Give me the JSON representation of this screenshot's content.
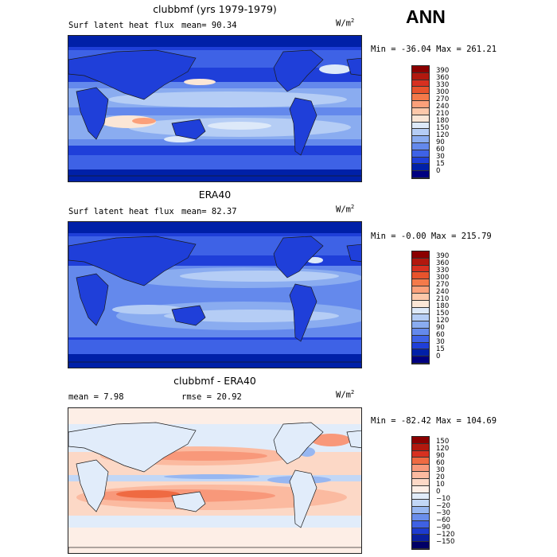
{
  "page": {
    "season": "ANN"
  },
  "chart_data": [
    {
      "type": "heatmap",
      "title": "clubbmf (yrs 1979-1979)",
      "field_label": "Surf latent heat flux",
      "stat_text": "mean=  90.34",
      "units": "W/m",
      "units_sup": "2",
      "min_max": "Min = -36.04  Max = 261.21",
      "colorbar": {
        "levels": [
          "390",
          "360",
          "330",
          "300",
          "270",
          "240",
          "210",
          "180",
          "150",
          "120",
          "90",
          "60",
          "30",
          "15",
          "0"
        ],
        "colors": [
          "#8b0000",
          "#b2180e",
          "#d73020",
          "#e8532c",
          "#f47a4a",
          "#fba07a",
          "#fdc8aa",
          "#fbe6d6",
          "#dde9f9",
          "#b5cdf5",
          "#8aacf0",
          "#6489ec",
          "#3e62e6",
          "#1f3fd9",
          "#0020a8",
          "#000080"
        ]
      }
    },
    {
      "type": "heatmap",
      "title": "ERA40",
      "field_label": "Surf latent heat flux",
      "stat_text": "mean=  82.37",
      "units": "W/m",
      "units_sup": "2",
      "min_max": "Min =  -0.00  Max = 215.79",
      "colorbar": {
        "levels": [
          "390",
          "360",
          "330",
          "300",
          "270",
          "240",
          "210",
          "180",
          "150",
          "120",
          "90",
          "60",
          "30",
          "15",
          "0"
        ],
        "colors": [
          "#8b0000",
          "#b2180e",
          "#d73020",
          "#e8532c",
          "#f47a4a",
          "#fba07a",
          "#fdc8aa",
          "#fbe6d6",
          "#dde9f9",
          "#b5cdf5",
          "#8aacf0",
          "#6489ec",
          "#3e62e6",
          "#1f3fd9",
          "#0020a8",
          "#000080"
        ]
      }
    },
    {
      "type": "heatmap",
      "title": "clubbmf - ERA40",
      "stat_text_left": "mean =   7.98",
      "stat_text_right": "rmse =  20.92",
      "units": "W/m",
      "units_sup": "2",
      "min_max": "Min = -82.42  Max = 104.69",
      "colorbar": {
        "levels": [
          "150",
          "120",
          "90",
          "60",
          "30",
          "20",
          "10",
          "0",
          "−10",
          "−20",
          "−30",
          "−60",
          "−90",
          "−120",
          "−150"
        ],
        "colors": [
          "#8b0000",
          "#b2180e",
          "#d73020",
          "#ef6a42",
          "#f8987a",
          "#fbbaa0",
          "#fcd8c6",
          "#fdeee6",
          "#e1ecfa",
          "#c2d7f6",
          "#97b7f1",
          "#6a8eeb",
          "#3f61e3",
          "#1d3bcf",
          "#0a1f9e",
          "#000066"
        ]
      }
    }
  ]
}
